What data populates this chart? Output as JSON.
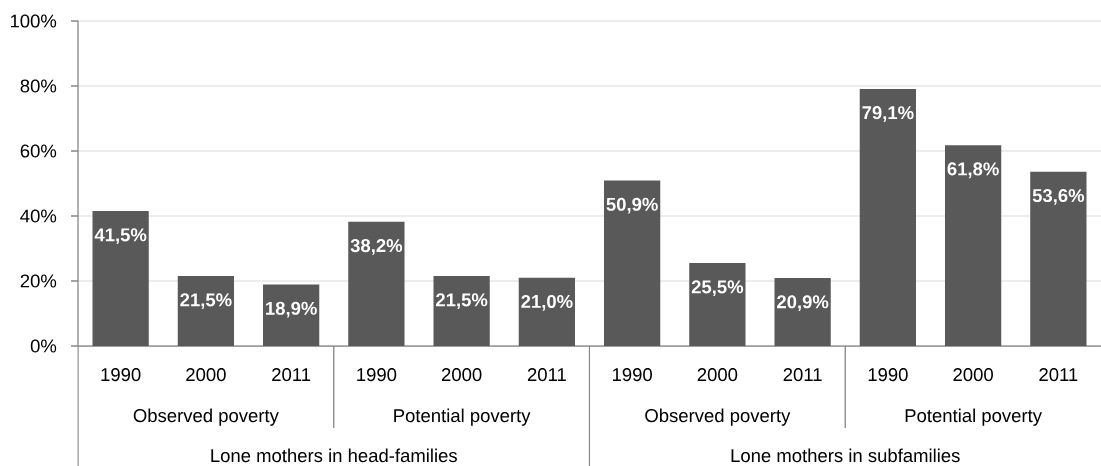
{
  "chart_data": {
    "type": "bar",
    "categories": [
      "1990",
      "2000",
      "2011",
      "1990",
      "2000",
      "2011",
      "1990",
      "2000",
      "2011",
      "1990",
      "2000",
      "2011"
    ],
    "values": [
      41.5,
      21.5,
      18.9,
      38.2,
      21.5,
      21.0,
      50.9,
      25.5,
      20.9,
      79.1,
      61.8,
      53.6
    ],
    "value_labels": [
      "41,5%",
      "21,5%",
      "18,9%",
      "38,2%",
      "21,5%",
      "21,0%",
      "50,9%",
      "25,5%",
      "20,9%",
      "79,1%",
      "61,8%",
      "53,6%"
    ],
    "color": "#595959",
    "ylim": [
      0,
      100
    ],
    "yticks": [
      {
        "value": 0,
        "label": "0%"
      },
      {
        "value": 20,
        "label": "20%"
      },
      {
        "value": 40,
        "label": "40%"
      },
      {
        "value": 60,
        "label": "60%"
      },
      {
        "value": 80,
        "label": "80%"
      },
      {
        "value": 100,
        "label": "100%"
      }
    ],
    "grid": "y",
    "annotations": [
      "Observed poverty",
      "Potential poverty",
      "Observed poverty",
      "Potential poverty",
      "Lone mothers in head-families",
      "Lone mothers in subfamilies"
    ]
  }
}
